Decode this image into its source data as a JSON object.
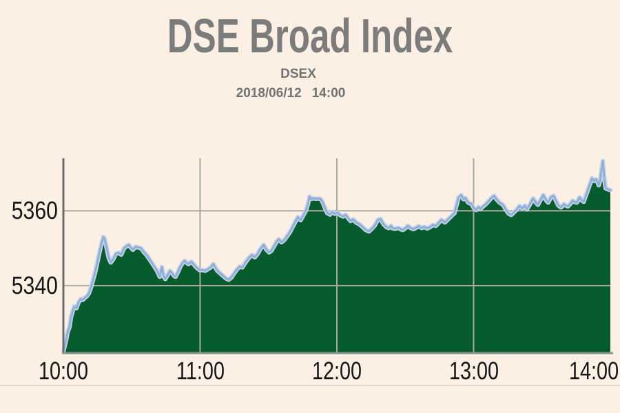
{
  "chart_data": {
    "type": "area",
    "title": "DSE Broad Index",
    "subtitle": "DSEX",
    "date": "2018/06/12",
    "time": "14:00",
    "x_unit": "minutes since 10:00",
    "xlim": [
      0,
      240
    ],
    "ylim": [
      5322,
      5374
    ],
    "grid": true,
    "legend": "none",
    "x_ticks": [
      {
        "pos": 0,
        "label": "10:00",
        "grid": false
      },
      {
        "pos": 60,
        "label": "11:00",
        "grid": true
      },
      {
        "pos": 120,
        "label": "12:00",
        "grid": true
      },
      {
        "pos": 180,
        "label": "13:00",
        "grid": true
      },
      {
        "pos": 240,
        "label": "14:00",
        "grid": false
      }
    ],
    "y_ticks": [
      {
        "pos": 5340,
        "label": "5340"
      },
      {
        "pos": 5360,
        "label": "5360"
      }
    ],
    "colors": {
      "background": "#fcf0e5",
      "fill": "#065c2d",
      "line": "#91aed6",
      "line_halo": "#c7d5ea",
      "grid": "#a9aaa4",
      "axis_y": "#6b6b6b",
      "axis_x": "#8e968e",
      "title_text": "#7c7c7c",
      "tick_text": "#151515"
    },
    "series": [
      {
        "name": "DSEX",
        "points": [
          [
            0,
            5322.5
          ],
          [
            0.6,
            5324
          ],
          [
            1.2,
            5325.5
          ],
          [
            1.8,
            5327.5
          ],
          [
            2.7,
            5329
          ],
          [
            3.3,
            5331.5
          ],
          [
            4.2,
            5333.5
          ],
          [
            4.8,
            5334.5
          ],
          [
            5.7,
            5334
          ],
          [
            6.6,
            5335.5
          ],
          [
            7.6,
            5336.4
          ],
          [
            8.5,
            5336.2
          ],
          [
            9.4,
            5336.8
          ],
          [
            10.3,
            5337.2
          ],
          [
            11.2,
            5338
          ],
          [
            12.1,
            5339.5
          ],
          [
            13,
            5341.5
          ],
          [
            13.9,
            5343.5
          ],
          [
            14.8,
            5346
          ],
          [
            15.7,
            5348.5
          ],
          [
            16.6,
            5351
          ],
          [
            17.5,
            5353
          ],
          [
            18.1,
            5352.6
          ],
          [
            19,
            5350
          ],
          [
            19.9,
            5347.5
          ],
          [
            20.8,
            5346.2
          ],
          [
            21.8,
            5347
          ],
          [
            23,
            5348.5
          ],
          [
            24.2,
            5348.8
          ],
          [
            25.4,
            5348.3
          ],
          [
            26.6,
            5350
          ],
          [
            27.8,
            5350.6
          ],
          [
            28.7,
            5350.9
          ],
          [
            29.6,
            5350.2
          ],
          [
            30.5,
            5349.6
          ],
          [
            31.7,
            5350.4
          ],
          [
            32.9,
            5350.2
          ],
          [
            34.1,
            5350
          ],
          [
            35.3,
            5349
          ],
          [
            36.5,
            5348.2
          ],
          [
            38,
            5346.9
          ],
          [
            39.5,
            5345.5
          ],
          [
            41.1,
            5344
          ],
          [
            42.3,
            5342.4
          ],
          [
            43.2,
            5345
          ],
          [
            44.1,
            5342.4
          ],
          [
            44.7,
            5341.8
          ],
          [
            45.9,
            5343
          ],
          [
            46.8,
            5344
          ],
          [
            47.7,
            5343.3
          ],
          [
            48.6,
            5342.6
          ],
          [
            49.2,
            5342.4
          ],
          [
            50.4,
            5343.8
          ],
          [
            51.3,
            5345.1
          ],
          [
            52.2,
            5346
          ],
          [
            53.2,
            5346.7
          ],
          [
            54.1,
            5346.1
          ],
          [
            54.9,
            5345.8
          ],
          [
            56.2,
            5346.4
          ],
          [
            57.1,
            5345.8
          ],
          [
            58,
            5345.1
          ],
          [
            58.9,
            5344.6
          ],
          [
            59.8,
            5344.2
          ],
          [
            61,
            5344.2
          ],
          [
            62.2,
            5344
          ],
          [
            63.4,
            5344.4
          ],
          [
            64.6,
            5344.9
          ],
          [
            65.8,
            5345.8
          ],
          [
            66.7,
            5344.8
          ],
          [
            67.6,
            5344
          ],
          [
            68.9,
            5343.3
          ],
          [
            70.1,
            5342.6
          ],
          [
            71.3,
            5342
          ],
          [
            72.5,
            5341.6
          ],
          [
            73.7,
            5342.2
          ],
          [
            74.9,
            5343.3
          ],
          [
            76.1,
            5344.3
          ],
          [
            77.3,
            5345.1
          ],
          [
            78.5,
            5344.9
          ],
          [
            80.1,
            5346.4
          ],
          [
            81.6,
            5347.6
          ],
          [
            82.8,
            5348.2
          ],
          [
            84,
            5347.6
          ],
          [
            85.2,
            5348.5
          ],
          [
            86.4,
            5349.8
          ],
          [
            87.9,
            5350.9
          ],
          [
            89.1,
            5349.6
          ],
          [
            90.3,
            5348.9
          ],
          [
            91.2,
            5349.3
          ],
          [
            92.4,
            5350.5
          ],
          [
            93.6,
            5351.8
          ],
          [
            94.5,
            5352.4
          ],
          [
            95.7,
            5351.6
          ],
          [
            96.9,
            5352.2
          ],
          [
            98.1,
            5353.2
          ],
          [
            99.3,
            5354.2
          ],
          [
            100.5,
            5355.6
          ],
          [
            101.7,
            5357
          ],
          [
            102.9,
            5358.3
          ],
          [
            104.1,
            5357.5
          ],
          [
            105.3,
            5358.8
          ],
          [
            106.5,
            5360.2
          ],
          [
            107.4,
            5362
          ],
          [
            108,
            5363.8
          ],
          [
            108.6,
            5363.2
          ],
          [
            109.8,
            5363.3
          ],
          [
            111,
            5363.2
          ],
          [
            112.2,
            5363.3
          ],
          [
            113.1,
            5363
          ],
          [
            114,
            5362
          ],
          [
            114.9,
            5360.6
          ],
          [
            115.8,
            5359.4
          ],
          [
            117,
            5359
          ],
          [
            117.9,
            5359.7
          ],
          [
            119.1,
            5359.2
          ],
          [
            120.3,
            5359.5
          ],
          [
            121.5,
            5358.8
          ],
          [
            122.7,
            5358.5
          ],
          [
            123.9,
            5358.9
          ],
          [
            125.1,
            5357.9
          ],
          [
            126,
            5357.3
          ],
          [
            127.2,
            5357.7
          ],
          [
            128.4,
            5356.9
          ],
          [
            129.6,
            5356.5
          ],
          [
            131.1,
            5355.8
          ],
          [
            132.6,
            5354.9
          ],
          [
            134.1,
            5354.5
          ],
          [
            135.3,
            5355.2
          ],
          [
            136.5,
            5356
          ],
          [
            138,
            5357.6
          ],
          [
            139.2,
            5357.8
          ],
          [
            140.4,
            5356.5
          ],
          [
            141.6,
            5355.7
          ],
          [
            142.8,
            5355.4
          ],
          [
            143.7,
            5356
          ],
          [
            144.6,
            5355.3
          ],
          [
            145.8,
            5355.2
          ],
          [
            147,
            5355.5
          ],
          [
            148.2,
            5355
          ],
          [
            149.1,
            5354.9
          ],
          [
            150.3,
            5355.5
          ],
          [
            151.2,
            5356
          ],
          [
            152.4,
            5355.4
          ],
          [
            153.6,
            5355.1
          ],
          [
            154.8,
            5355.5
          ],
          [
            156,
            5355.9
          ],
          [
            157.2,
            5355.4
          ],
          [
            158.4,
            5355.7
          ],
          [
            159.6,
            5355.3
          ],
          [
            160.8,
            5355.6
          ],
          [
            162,
            5356.2
          ],
          [
            163.5,
            5356
          ],
          [
            164.7,
            5356.8
          ],
          [
            165.9,
            5357.6
          ],
          [
            167.4,
            5356.9
          ],
          [
            168.9,
            5357.8
          ],
          [
            170.4,
            5358.7
          ],
          [
            171.6,
            5359.4
          ],
          [
            172.5,
            5361.5
          ],
          [
            173.4,
            5363.6
          ],
          [
            174.6,
            5364.2
          ],
          [
            175.5,
            5363.1
          ],
          [
            176.4,
            5363.4
          ],
          [
            177.6,
            5362.2
          ],
          [
            179.1,
            5361.8
          ],
          [
            180,
            5360.8
          ],
          [
            181.2,
            5360.2
          ],
          [
            182.1,
            5361
          ],
          [
            183,
            5360.5
          ],
          [
            184.2,
            5361.2
          ],
          [
            185.4,
            5361.8
          ],
          [
            186.6,
            5362.6
          ],
          [
            188.1,
            5363.6
          ],
          [
            189,
            5364
          ],
          [
            190.2,
            5363
          ],
          [
            191.4,
            5362.2
          ],
          [
            192.9,
            5361.6
          ],
          [
            194.1,
            5360.4
          ],
          [
            195.3,
            5359.3
          ],
          [
            196.5,
            5358.9
          ],
          [
            197.7,
            5359.6
          ],
          [
            198.9,
            5360.3
          ],
          [
            200.1,
            5361.3
          ],
          [
            201.3,
            5360.6
          ],
          [
            202.5,
            5361.4
          ],
          [
            203.4,
            5360.4
          ],
          [
            204.6,
            5361.6
          ],
          [
            206.1,
            5363.3
          ],
          [
            207.3,
            5362.2
          ],
          [
            208.2,
            5361.6
          ],
          [
            209.4,
            5363
          ],
          [
            210.6,
            5364.2
          ],
          [
            211.8,
            5362.8
          ],
          [
            212.7,
            5362.2
          ],
          [
            213.9,
            5363.6
          ],
          [
            215.1,
            5364
          ],
          [
            216.3,
            5362.5
          ],
          [
            217.2,
            5361.4
          ],
          [
            218.4,
            5360.9
          ],
          [
            219.6,
            5361.8
          ],
          [
            220.5,
            5361.4
          ],
          [
            221.4,
            5361.2
          ],
          [
            222.6,
            5362
          ],
          [
            223.5,
            5362.7
          ],
          [
            224.4,
            5362.3
          ],
          [
            225.3,
            5362.2
          ],
          [
            226.5,
            5363.6
          ],
          [
            227.4,
            5362.8
          ],
          [
            228.3,
            5362.4
          ],
          [
            229.5,
            5364.5
          ],
          [
            230.4,
            5366
          ],
          [
            231.3,
            5367.5
          ],
          [
            231.9,
            5368.7
          ],
          [
            232.8,
            5368
          ],
          [
            233.7,
            5368.4
          ],
          [
            234.3,
            5367.8
          ],
          [
            234.9,
            5366.8
          ],
          [
            235.5,
            5368
          ],
          [
            236.1,
            5371
          ],
          [
            236.7,
            5373.3
          ],
          [
            237.3,
            5369
          ],
          [
            237.9,
            5366
          ],
          [
            240,
            5365.5
          ]
        ]
      }
    ]
  }
}
